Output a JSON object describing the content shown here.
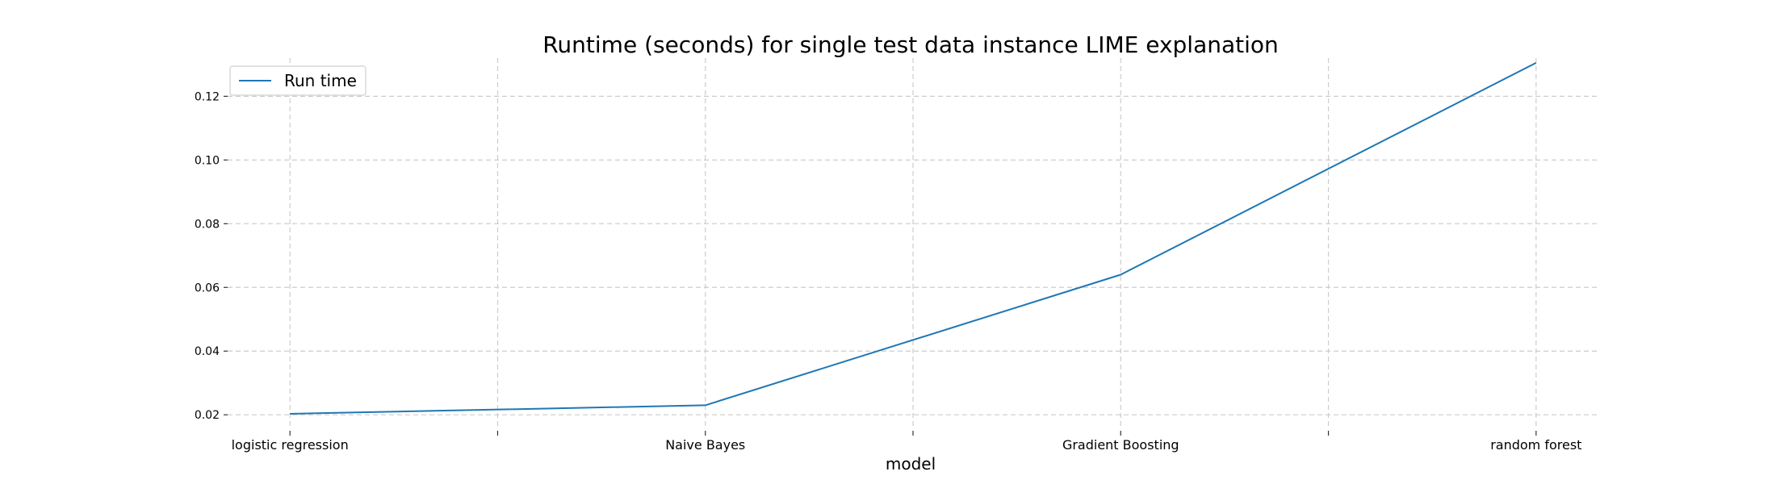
{
  "chart_data": {
    "type": "line",
    "title": "Runtime (seconds) for single test data instance LIME explanation",
    "xlabel": "model",
    "ylabel": "",
    "x": [
      "logistic regression",
      "Naive Bayes",
      "Gradient Boosting",
      "random forest"
    ],
    "x_tick_positions": [
      0,
      0.5,
      1,
      1.5,
      2,
      2.5,
      3
    ],
    "xlim": [
      -0.15,
      3.15
    ],
    "yticks": [
      "0.02",
      "0.04",
      "0.06",
      "0.08",
      "0.10",
      "0.12"
    ],
    "ylim": [
      0.016,
      0.132
    ],
    "series": [
      {
        "name": "Run time",
        "values": [
          0.0203,
          0.023,
          0.064,
          0.1305
        ],
        "color": "#1f77b4"
      }
    ],
    "grid": true,
    "legend_position": "top-left"
  }
}
